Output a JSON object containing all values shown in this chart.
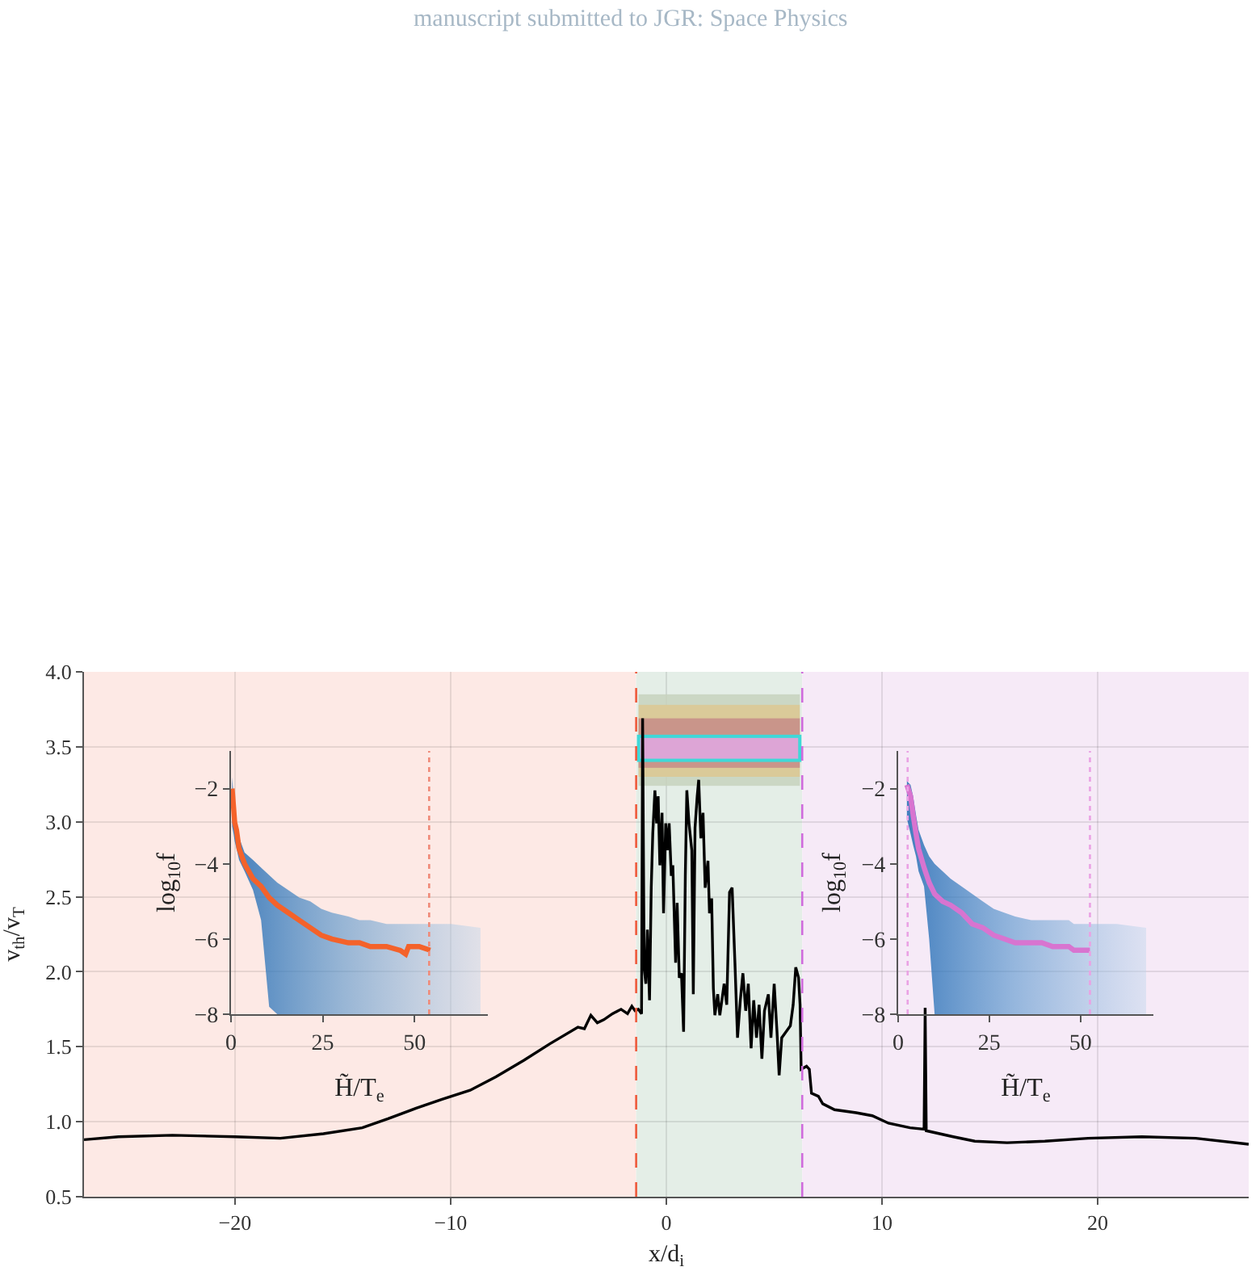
{
  "chart_data": [
    {
      "type": "line",
      "annotations": [
        "manuscript submitted to JGR: Space Physics"
      ],
      "xlabel": "x/d$_{i}$",
      "ylabel": "v$_{th}$/v$_{T}$",
      "x": [
        -27,
        -25.4,
        -22.9,
        -20,
        -17.9,
        -15.9,
        -14.1,
        -12.9,
        -11.6,
        -10.4,
        -9.1,
        -7.9,
        -6.6,
        -5.4,
        -4.1,
        -3.8,
        -3.5,
        -3.2,
        -2.9,
        -2.5,
        -2.1,
        -1.8,
        -1.6,
        -1.45,
        -1.3,
        -1.15,
        -1.1,
        -1.03,
        -0.95,
        -0.88,
        -0.78,
        -0.7,
        -0.63,
        -0.53,
        -0.45,
        -0.38,
        -0.3,
        -0.2,
        -0.13,
        -0.03,
        0.05,
        0.13,
        0.23,
        0.3,
        0.43,
        0.5,
        0.6,
        0.7,
        0.8,
        0.88,
        0.95,
        1.05,
        1.18,
        1.25,
        1.33,
        1.43,
        1.5,
        1.6,
        1.7,
        1.8,
        1.93,
        2.0,
        2.1,
        2.18,
        2.25,
        2.38,
        2.48,
        2.68,
        2.8,
        2.93,
        3.05,
        3.18,
        3.3,
        3.43,
        3.55,
        3.68,
        3.8,
        3.93,
        4.05,
        4.18,
        4.3,
        4.43,
        4.55,
        4.73,
        4.85,
        5.0,
        5.13,
        5.23,
        5.35,
        5.55,
        5.75,
        5.88,
        6.0,
        6.13,
        6.2,
        6.25,
        6.5,
        6.63,
        6.73,
        7.05,
        7.25,
        7.8,
        8.8,
        9.55,
        10.3,
        11.3,
        11.95,
        12.0,
        12.05,
        13.3,
        14.3,
        15.8,
        17.55,
        19.55,
        22.05,
        24.55,
        27
      ],
      "series": [
        {
          "color": "#000000",
          "values": [
            0.88,
            0.9,
            0.91,
            0.9,
            0.89,
            0.92,
            0.96,
            1.02,
            1.09,
            1.15,
            1.21,
            1.3,
            1.41,
            1.52,
            1.63,
            1.62,
            1.71,
            1.66,
            1.68,
            1.72,
            1.75,
            1.72,
            1.77,
            1.74,
            1.75,
            1.72,
            3.69,
            2.03,
            1.92,
            2.28,
            1.81,
            2.56,
            2.92,
            3.21,
            2.99,
            3.17,
            2.71,
            3.06,
            2.39,
            2.99,
            2.81,
            2.99,
            2.64,
            2.71,
            2.06,
            2.46,
            1.96,
            1.99,
            1.6,
            2.64,
            3.21,
            2.99,
            2.81,
            1.85,
            2.96,
            3.17,
            3.28,
            2.89,
            3.06,
            2.56,
            2.74,
            2.39,
            2.49,
            1.89,
            1.71,
            1.85,
            1.71,
            1.92,
            1.78,
            2.53,
            2.56,
            2.06,
            1.56,
            1.81,
            1.99,
            1.74,
            1.92,
            1.49,
            1.81,
            1.56,
            1.78,
            1.42,
            1.74,
            1.85,
            1.56,
            1.92,
            1.6,
            1.31,
            1.56,
            1.6,
            1.64,
            1.78,
            2.03,
            1.96,
            1.78,
            1.35,
            1.37,
            1.35,
            1.19,
            1.17,
            1.12,
            1.08,
            1.06,
            1.04,
            0.99,
            0.96,
            0.95,
            1.76,
            0.94,
            0.9,
            0.87,
            0.86,
            0.87,
            0.89,
            0.9,
            0.89,
            0.85
          ]
        }
      ],
      "xlim": [
        -27,
        27
      ],
      "xticks": [
        {
          "value": -20,
          "label": "−20"
        },
        {
          "value": -10,
          "label": "−10"
        },
        0,
        10,
        20
      ],
      "ylim": [
        0.5,
        4
      ],
      "yticks": [
        0.5,
        {
          "value": 1,
          "label": "1.0"
        },
        1.5,
        {
          "value": 2,
          "label": "2.0"
        },
        2.5,
        {
          "value": 3,
          "label": "3.0"
        },
        3.5,
        {
          "value": 4,
          "label": "4.0"
        }
      ],
      "grid": true,
      "bands": [
        {
          "axis": "x",
          "from": -27,
          "to": -1.4,
          "color": "#fde9e5"
        },
        {
          "axis": "x",
          "from": -1.4,
          "to": 6.3,
          "color": "#e4eee7"
        },
        {
          "axis": "x",
          "from": 6.3,
          "to": 27,
          "color": "#f6eaf7"
        }
      ],
      "ref_lines": [
        {
          "axis": "x",
          "value": -1.4,
          "color": "#ee5a3c",
          "line_style": "dashed"
        },
        {
          "axis": "x",
          "value": 6.3,
          "color": "#cf6bdc",
          "line_style": "dashed"
        }
      ]
    },
    {
      "type": "line",
      "xlabel": "H̃/T$_{e}$",
      "ylabel": "log$_{10}$f",
      "x": [
        0.3,
        0.7,
        1.0,
        1.5,
        2.2,
        3.7,
        6,
        8.2,
        10.4,
        12.6,
        15.6,
        18.6,
        21.6,
        24.6,
        27.5,
        32,
        35,
        38,
        42.4,
        46.1,
        47.6,
        48.4,
        51.3,
        54.3,
        60,
        68
      ],
      "series": [
        {
          "color": "#f4622a",
          "values": [
            -2.0,
            -2.5,
            -2.9,
            -3.1,
            -3.6,
            -4.0,
            -4.4,
            -4.6,
            -4.9,
            -5.1,
            -5.3,
            -5.5,
            -5.7,
            -5.9,
            -6.0,
            -6.1,
            -6.1,
            -6.2,
            -6.2,
            -6.3,
            -6.4,
            -6.2,
            -6.2,
            -6.3,
            null,
            null
          ],
          "upper": [
            -1.7,
            -2.2,
            -2.5,
            -2.9,
            -3.3,
            -3.7,
            -3.9,
            -4.1,
            -4.3,
            -4.5,
            -4.7,
            -4.9,
            -5.0,
            -5.2,
            -5.3,
            -5.4,
            -5.5,
            -5.5,
            -5.6,
            -5.6,
            -5.6,
            -5.6,
            -5.6,
            -5.6,
            -5.6,
            -5.7
          ],
          "lower": [
            -3.0,
            -3.2,
            -3.4,
            -3.6,
            -3.9,
            -4.2,
            -4.7,
            -5.5,
            -7.8,
            -8,
            -8,
            -8,
            -8,
            -8,
            -8,
            -8,
            -8,
            -8,
            -8,
            -8,
            -8,
            -8,
            -8,
            -8,
            -8,
            -8
          ]
        }
      ],
      "xlim": [
        0,
        70
      ],
      "xticks": [
        0,
        25,
        50
      ],
      "ylim": [
        -8,
        -1
      ],
      "yticks": [
        {
          "value": -8,
          "label": "−8"
        },
        {
          "value": -6,
          "label": "−6"
        },
        {
          "value": -4,
          "label": "−4"
        },
        {
          "value": -2,
          "label": "−2"
        }
      ],
      "grid": false,
      "ref_lines": [
        {
          "axis": "x",
          "value": 54,
          "color": "#f08a78",
          "line_style": "dotted"
        }
      ]
    },
    {
      "type": "line",
      "xlabel": "H̃/T$_{e}$",
      "ylabel": "log$_{10}$f",
      "x": [
        2.4,
        3.4,
        4.1,
        4.9,
        5.6,
        7.1,
        8.5,
        10,
        12.2,
        14.4,
        17.4,
        20.3,
        23.2,
        26.2,
        29.1,
        32.1,
        36.5,
        39.4,
        42.4,
        45.3,
        46.8,
        48.2,
        51.2,
        52.6,
        60,
        68
      ],
      "series": [
        {
          "color": "#d874d0",
          "values": [
            -1.9,
            -2.2,
            -2.7,
            -3.2,
            -3.6,
            -4.1,
            -4.5,
            -4.8,
            -5.0,
            -5.1,
            -5.3,
            -5.6,
            -5.7,
            -5.9,
            -6.0,
            -6.1,
            -6.1,
            -6.1,
            -6.2,
            -6.2,
            -6.2,
            -6.3,
            -6.3,
            -6.3,
            null,
            null
          ],
          "upper": [
            -1.8,
            -1.9,
            -2.2,
            -2.7,
            -3.1,
            -3.5,
            -3.8,
            -4.0,
            -4.2,
            -4.4,
            -4.6,
            -4.8,
            -5.0,
            -5.2,
            -5.3,
            -5.4,
            -5.5,
            -5.5,
            -5.5,
            -5.5,
            -5.5,
            -5.6,
            -5.6,
            -5.6,
            -5.6,
            -5.7
          ],
          "lower": [
            -2.8,
            -3.2,
            -3.5,
            -3.8,
            -4.2,
            -4.6,
            -6.0,
            -8,
            -8,
            -8,
            -8,
            -8,
            -8,
            -8,
            -8,
            -8,
            -8,
            -8,
            -8,
            -8,
            -8,
            -8,
            -8,
            -8,
            -8,
            -8
          ]
        }
      ],
      "xlim": [
        0,
        70
      ],
      "xticks": [
        0,
        25,
        50
      ],
      "ylim": [
        -8,
        -1
      ],
      "yticks": [
        {
          "value": -8,
          "label": "−8"
        },
        {
          "value": -6,
          "label": "−6"
        },
        {
          "value": -4,
          "label": "−4"
        },
        {
          "value": -2,
          "label": "−2"
        }
      ],
      "grid": false,
      "ref_lines": [
        {
          "axis": "x",
          "value": 2.6,
          "color": "#eaa2e4",
          "line_style": "dotted"
        },
        {
          "axis": "x",
          "value": 52.6,
          "color": "#eaa2e4",
          "line_style": "dotted"
        }
      ]
    }
  ]
}
